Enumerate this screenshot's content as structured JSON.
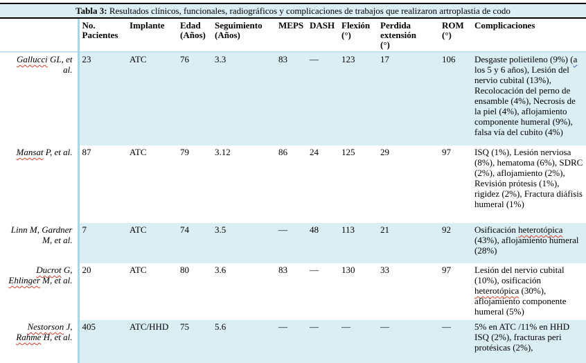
{
  "table_title": {
    "label": "Tabla 3:",
    "text": " Resultados clínicos, funcionales, radiográficos y complicaciones de trabajos que realizaron artroplastia de codo"
  },
  "columns": [
    {
      "label": ""
    },
    {
      "label": "No.\nPacientes"
    },
    {
      "label": "Implante"
    },
    {
      "label": "Edad\n(Años)"
    },
    {
      "label": "Seguimiento\n(Años)"
    },
    {
      "label": "MEPS"
    },
    {
      "label": "DASH"
    },
    {
      "label": "Flexión\n(°)"
    },
    {
      "label": "Perdida\nextensión\n(°)"
    },
    {
      "label": "ROM\n(°)"
    },
    {
      "label": "Complicaciones"
    }
  ],
  "rows": [
    {
      "author": [
        {
          "t": "Gallucci",
          "u": "red"
        },
        {
          "t": " GL, et al.",
          "u": null
        }
      ],
      "values": [
        "23",
        "ATC",
        "76",
        "3.3",
        "83",
        "—",
        "123",
        "17",
        "106"
      ],
      "complications": [
        {
          "t": "Desgaste polietileno (9%) (",
          "u": null
        },
        {
          "t": "a",
          "u": "blue"
        },
        {
          "t": " los 5 y 6 años), Lesión del nervio cubital (13%), Recolocación del perno de ensamble (4%), Necrosis de la piel (4%), aflojamiento componente humeral (9%), falsa vía del cubito (4%)",
          "u": null
        }
      ]
    },
    {
      "author": [
        {
          "t": "Mansat",
          "u": "red"
        },
        {
          "t": " P, et al.",
          "u": null
        }
      ],
      "values": [
        "87",
        "ATC",
        "79",
        "3.12",
        "86",
        "24",
        "125",
        "29",
        "97"
      ],
      "complications": [
        {
          "t": "ISQ (1%), Lesión nerviosa (8%), hematoma (6%), SDRC (2%), aflojamiento (2%), Revisión prótesis (1%), rigidez (2%), Fractura diáfisis humeral (1%)",
          "u": null
        }
      ]
    },
    {
      "author": [
        {
          "t": "Linn M, Gardner M, et al.",
          "u": null
        }
      ],
      "values": [
        "7",
        "ATC",
        "74",
        "3.5",
        "—",
        "48",
        "113",
        "21",
        "92"
      ],
      "complications": [
        {
          "t": "Osificación ",
          "u": null
        },
        {
          "t": "heterotópica",
          "u": "red"
        },
        {
          "t": " (43%), aflojamiento humeral (28%)",
          "u": null
        }
      ]
    },
    {
      "author": [
        {
          "t": "Ducrot",
          "u": "red"
        },
        {
          "t": " G, ",
          "u": null
        },
        {
          "t": "Ehlinger",
          "u": "red"
        },
        {
          "t": " M, et al.",
          "u": null
        }
      ],
      "values": [
        "20",
        "ATC",
        "80",
        "3.6",
        "83",
        "—",
        "130",
        "33",
        "97"
      ],
      "complications": [
        {
          "t": "Lesión del nervio cubital (10%), osificación ",
          "u": null
        },
        {
          "t": "heterotópica",
          "u": "red"
        },
        {
          "t": " (30%), aflojamiento componente humeral (5%)",
          "u": null
        }
      ]
    },
    {
      "author": [
        {
          "t": "Nestorson",
          "u": "red"
        },
        {
          "t": " J, ",
          "u": null
        },
        {
          "t": "Rahme",
          "u": "red"
        },
        {
          "t": " H, et al.",
          "u": null
        }
      ],
      "values": [
        "405",
        "ATC/HHD",
        "75",
        "5.6",
        "—",
        "—",
        "—",
        "—",
        "—"
      ],
      "complications": [
        {
          "t": "5% en ATC /11% en HHD\nISQ (2%), fracturas peri protésicas (2%),",
          "u": null
        }
      ]
    }
  ],
  "colors": {
    "stripe": "#daeef3",
    "divider": "#a5d7e4",
    "spell_red": "#dd3a2a",
    "spell_blue": "#3a5fcd"
  }
}
